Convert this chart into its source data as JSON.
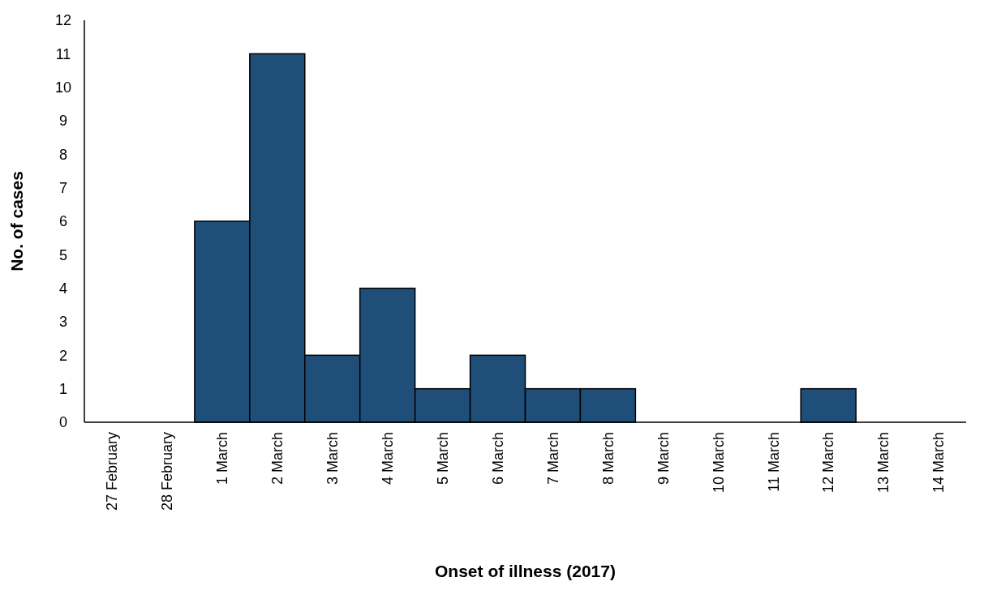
{
  "chart_data": {
    "type": "bar",
    "xlabel": "Onset of illness (2017)",
    "ylabel": "No. of cases",
    "categories": [
      "27 February",
      "28 February",
      "1 March",
      "2 March",
      "3 March",
      "4 March",
      "5 March",
      "6 March",
      "7 March",
      "8 March",
      "9 March",
      "10 March",
      "11 March",
      "12 March",
      "13 March",
      "14 March"
    ],
    "values": [
      0,
      0,
      6,
      11,
      2,
      4,
      1,
      2,
      1,
      1,
      0,
      0,
      0,
      1,
      0,
      0
    ],
    "color": "#1f4e79",
    "ylim": [
      0,
      12
    ],
    "yticks": [
      0,
      1,
      2,
      3,
      4,
      5,
      6,
      7,
      8,
      9,
      10,
      11,
      12
    ],
    "grid": false
  }
}
